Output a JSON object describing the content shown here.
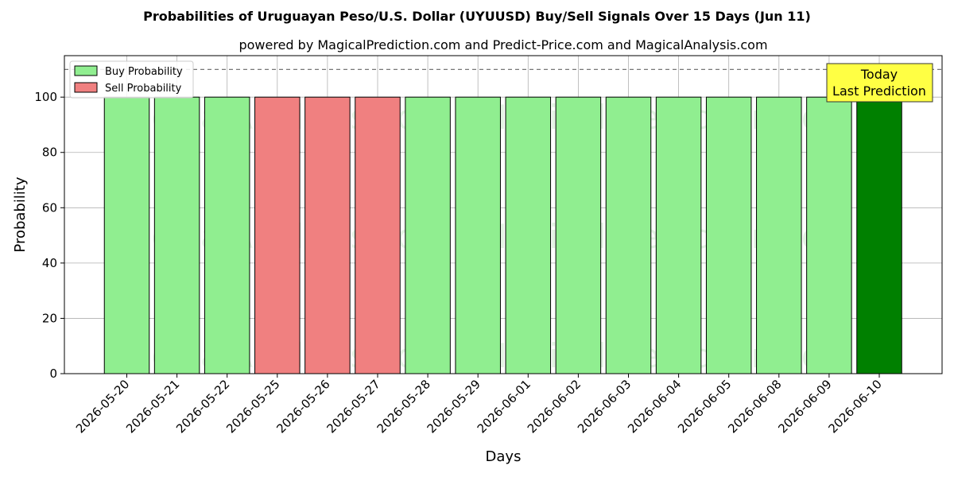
{
  "chart_data": {
    "type": "bar",
    "title": "Probabilities of Uruguayan Peso/U.S. Dollar (UYUUSD) Buy/Sell Signals Over 15 Days (Jun 11)",
    "subtitle": "powered by MagicalPrediction.com and Predict-Price.com and MagicalAnalysis.com",
    "xlabel": "Days",
    "ylabel": "Probability",
    "ylim": [
      0,
      115
    ],
    "yticks": [
      "0",
      "20",
      "40",
      "60",
      "80",
      "100"
    ],
    "reference_line": 110,
    "categories": [
      "2026-05-20",
      "2026-05-21",
      "2026-05-22",
      "2026-05-25",
      "2026-05-26",
      "2026-05-27",
      "2026-05-28",
      "2026-05-29",
      "2026-06-01",
      "2026-06-02",
      "2026-06-03",
      "2026-06-04",
      "2026-06-05",
      "2026-06-08",
      "2026-06-09",
      "2026-06-10"
    ],
    "values": [
      100,
      100,
      100,
      100,
      100,
      100,
      100,
      100,
      100,
      100,
      100,
      100,
      100,
      100,
      100,
      100
    ],
    "signals": [
      "buy",
      "buy",
      "buy",
      "sell",
      "sell",
      "sell",
      "buy",
      "buy",
      "buy",
      "buy",
      "buy",
      "buy",
      "buy",
      "buy",
      "buy",
      "today"
    ],
    "legend": {
      "placement": "top-left",
      "entries": [
        {
          "label": "Buy Probability",
          "color": "#90ee90"
        },
        {
          "label": "Sell Probability",
          "color": "#f08080"
        }
      ]
    },
    "colors": {
      "buy": "#90ee90",
      "sell": "#f08080",
      "today": "#008000"
    },
    "annotation": {
      "lines": [
        "Today",
        "Last Prediction"
      ],
      "background": "#ffff44"
    },
    "watermarks": [
      "MagicalAnalysis.com",
      "MagicalPrediction.com"
    ],
    "grid": true
  }
}
